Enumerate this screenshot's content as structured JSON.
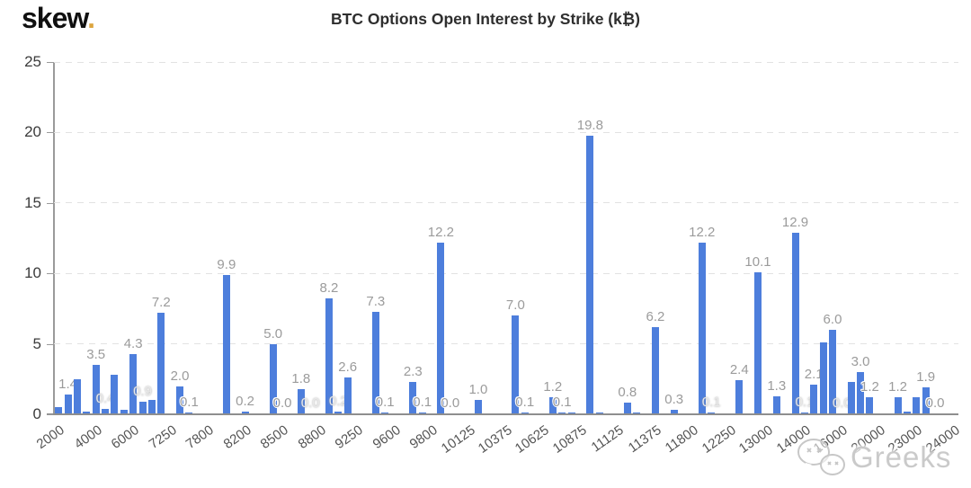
{
  "logo": {
    "text": "skew",
    "dot": "."
  },
  "title": "BTC Options Open Interest by Strike (k₿)",
  "watermark": {
    "text": "Greeks",
    "icon": "wechat-icon"
  },
  "colors": {
    "bar": "#4d7edc",
    "bar_label": "#9b9b9b",
    "grid": "#e2e2e2",
    "axis": "#9a9a9a",
    "logo_dot": "#dca53f",
    "watermark": "#c7c7c7"
  },
  "chart_data": {
    "type": "bar",
    "title": "BTC Options Open Interest by Strike (k₿)",
    "xlabel": "",
    "ylabel": "",
    "ylim": [
      0,
      25
    ],
    "yticks": [
      0,
      5,
      10,
      15,
      20,
      25
    ],
    "grid": "horizontal-dashed",
    "legend": "none",
    "tick_every": 4,
    "xtick_labels": [
      "2000",
      "4000",
      "6000",
      "7250",
      "7800",
      "8200",
      "8500",
      "8800",
      "9250",
      "9600",
      "9800",
      "10125",
      "10375",
      "10625",
      "10875",
      "11125",
      "11375",
      "11800",
      "12250",
      "13000",
      "14000",
      "16000",
      "20000",
      "23000",
      "24000"
    ],
    "bars": [
      {
        "v": 0.5,
        "l": ""
      },
      {
        "v": 1.4,
        "l": "1.4"
      },
      {
        "v": 2.5,
        "l": ""
      },
      {
        "v": 0.2,
        "l": ""
      },
      {
        "v": 3.5,
        "l": "3.5"
      },
      {
        "v": 0.4,
        "l": "0.4",
        "f": 1
      },
      {
        "v": 2.8,
        "l": ""
      },
      {
        "v": 0.3,
        "l": ""
      },
      {
        "v": 4.3,
        "l": "4.3"
      },
      {
        "v": 0.9,
        "l": "0.9",
        "f": 1
      },
      {
        "v": 1.0,
        "l": ""
      },
      {
        "v": 7.2,
        "l": "7.2"
      },
      {
        "v": 0.05,
        "l": ""
      },
      {
        "v": 2.0,
        "l": "2.0"
      },
      {
        "v": 0.1,
        "l": "0.1"
      },
      {
        "v": 0,
        "l": ""
      },
      {
        "v": 0.05,
        "l": ""
      },
      {
        "v": 0,
        "l": ""
      },
      {
        "v": 9.9,
        "l": "9.9"
      },
      {
        "v": 0.05,
        "l": ""
      },
      {
        "v": 0.2,
        "l": "0.2"
      },
      {
        "v": 0.05,
        "l": ""
      },
      {
        "v": 0,
        "l": ""
      },
      {
        "v": 5.0,
        "l": "5.0"
      },
      {
        "v": 0.0,
        "l": "0.0"
      },
      {
        "v": 0.05,
        "l": ""
      },
      {
        "v": 1.8,
        "l": "1.8"
      },
      {
        "v": 0.0,
        "l": "0.0",
        "f": 1
      },
      {
        "v": 0.05,
        "l": ""
      },
      {
        "v": 8.2,
        "l": "8.2"
      },
      {
        "v": 0.2,
        "l": "0.2",
        "f": 1
      },
      {
        "v": 2.6,
        "l": "2.6"
      },
      {
        "v": 0.05,
        "l": ""
      },
      {
        "v": 0,
        "l": ""
      },
      {
        "v": 7.3,
        "l": "7.3"
      },
      {
        "v": 0.1,
        "l": "0.1"
      },
      {
        "v": 0.05,
        "l": ""
      },
      {
        "v": 0,
        "l": ""
      },
      {
        "v": 2.3,
        "l": "2.3"
      },
      {
        "v": 0.1,
        "l": "0.1"
      },
      {
        "v": 0.05,
        "l": ""
      },
      {
        "v": 12.2,
        "l": "12.2"
      },
      {
        "v": 0.0,
        "l": "0.0"
      },
      {
        "v": 0,
        "l": ""
      },
      {
        "v": 0.05,
        "l": ""
      },
      {
        "v": 1.0,
        "l": "1.0"
      },
      {
        "v": 0.05,
        "l": ""
      },
      {
        "v": 0,
        "l": ""
      },
      {
        "v": 0.05,
        "l": ""
      },
      {
        "v": 7.0,
        "l": "7.0"
      },
      {
        "v": 0.1,
        "l": "0.1"
      },
      {
        "v": 0,
        "l": ""
      },
      {
        "v": 0.05,
        "l": ""
      },
      {
        "v": 1.2,
        "l": "1.2"
      },
      {
        "v": 0.1,
        "l": "0.1"
      },
      {
        "v": 0.1,
        "l": ""
      },
      {
        "v": 0.05,
        "l": ""
      },
      {
        "v": 19.8,
        "l": "19.8"
      },
      {
        "v": 0.1,
        "l": ""
      },
      {
        "v": 0,
        "l": ""
      },
      {
        "v": 0.05,
        "l": ""
      },
      {
        "v": 0.8,
        "l": "0.8"
      },
      {
        "v": 0.1,
        "l": ""
      },
      {
        "v": 0,
        "l": ""
      },
      {
        "v": 6.2,
        "l": "6.2"
      },
      {
        "v": 0,
        "l": ""
      },
      {
        "v": 0.3,
        "l": "0.3"
      },
      {
        "v": 0,
        "l": ""
      },
      {
        "v": 0.05,
        "l": ""
      },
      {
        "v": 12.2,
        "l": "12.2"
      },
      {
        "v": 0.1,
        "l": "0.1",
        "f": 1
      },
      {
        "v": 0,
        "l": ""
      },
      {
        "v": 0.05,
        "l": ""
      },
      {
        "v": 2.4,
        "l": "2.4"
      },
      {
        "v": 0,
        "l": ""
      },
      {
        "v": 10.1,
        "l": "10.1"
      },
      {
        "v": 0.05,
        "l": ""
      },
      {
        "v": 1.3,
        "l": "1.3"
      },
      {
        "v": 0,
        "l": ""
      },
      {
        "v": 12.9,
        "l": "12.9"
      },
      {
        "v": 0.1,
        "l": "0.1",
        "f": 1
      },
      {
        "v": 2.1,
        "l": "2.1"
      },
      {
        "v": 5.1,
        "l": ""
      },
      {
        "v": 6.0,
        "l": "6.0"
      },
      {
        "v": 0.0,
        "l": "0.0",
        "f": 1
      },
      {
        "v": 2.3,
        "l": ""
      },
      {
        "v": 3.0,
        "l": "3.0"
      },
      {
        "v": 1.2,
        "l": "1.2"
      },
      {
        "v": 0.05,
        "l": ""
      },
      {
        "v": 0,
        "l": ""
      },
      {
        "v": 1.2,
        "l": "1.2"
      },
      {
        "v": 0.2,
        "l": ""
      },
      {
        "v": 1.2,
        "l": ""
      },
      {
        "v": 1.9,
        "l": "1.9"
      },
      {
        "v": 0.0,
        "l": "0.0"
      },
      {
        "v": 0,
        "l": ""
      },
      {
        "v": 0.05,
        "l": ""
      }
    ]
  }
}
